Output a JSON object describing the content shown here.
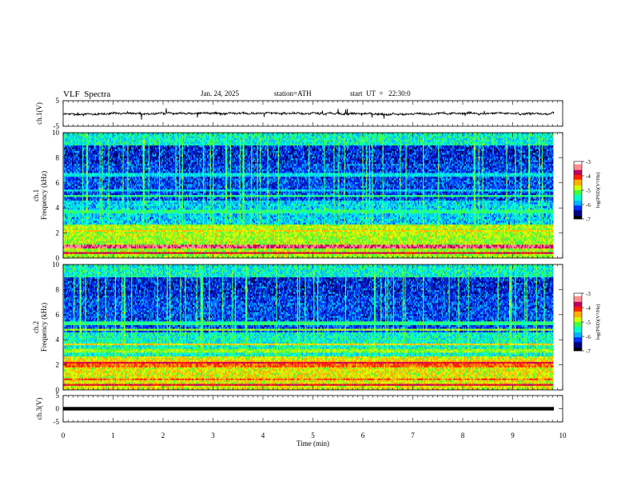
{
  "header": {
    "title": "VLF  Spectra",
    "date": "Jan. 24, 2025",
    "station": "station=ATH",
    "start": "start  UT  =   22:30:0"
  },
  "chart_data": [
    {
      "type": "line",
      "panel": "ch1-waveform",
      "ylabel": "ch.1(V)",
      "yticks": [
        "5",
        "-5"
      ],
      "ylim": [
        -5,
        5
      ],
      "xlim": [
        0,
        10
      ],
      "color": "#000000"
    },
    {
      "type": "heatmap",
      "panel": "ch1-spectrogram",
      "ylabel": "ch.1\nFrequency  (kHz)",
      "yticks": [
        "0",
        "2",
        "4",
        "6",
        "8",
        "10"
      ],
      "ylim": [
        0,
        10
      ],
      "xlim": [
        0,
        10
      ],
      "colorbar": {
        "label": "log(PSD)(V²/Hz)",
        "ticks": [
          "-3",
          "-4",
          "-5",
          "-6",
          "-7"
        ],
        "range": [
          -7,
          -3
        ]
      }
    },
    {
      "type": "heatmap",
      "panel": "ch2-spectrogram",
      "ylabel": "ch.2\nFrequency  (kHz)",
      "yticks": [
        "0",
        "2",
        "4",
        "6",
        "8",
        "10"
      ],
      "ylim": [
        0,
        10
      ],
      "xlim": [
        0,
        10
      ],
      "colorbar": {
        "label": "log(PSD)(V²/Hz)",
        "ticks": [
          "-3",
          "-4",
          "-5",
          "-6",
          "-7"
        ],
        "range": [
          -7,
          -3
        ]
      }
    },
    {
      "type": "line",
      "panel": "ch3-waveform",
      "ylabel": "ch.3(V)",
      "yticks": [
        "5",
        "0",
        "-5"
      ],
      "ylim": [
        -5,
        5
      ],
      "xlim": [
        0,
        10
      ],
      "xlabel": "Time  (min)",
      "xticks": [
        "0",
        "1",
        "2",
        "3",
        "4",
        "5",
        "6",
        "7",
        "8",
        "9",
        "10"
      ],
      "color": "#000000"
    }
  ],
  "colormap": [
    "#000000",
    "#000080",
    "#0030ff",
    "#00b4ff",
    "#00ffd0",
    "#40ff40",
    "#d0ff00",
    "#ffb000",
    "#ff2000",
    "#c00060",
    "#ff9090",
    "#ffffff"
  ]
}
